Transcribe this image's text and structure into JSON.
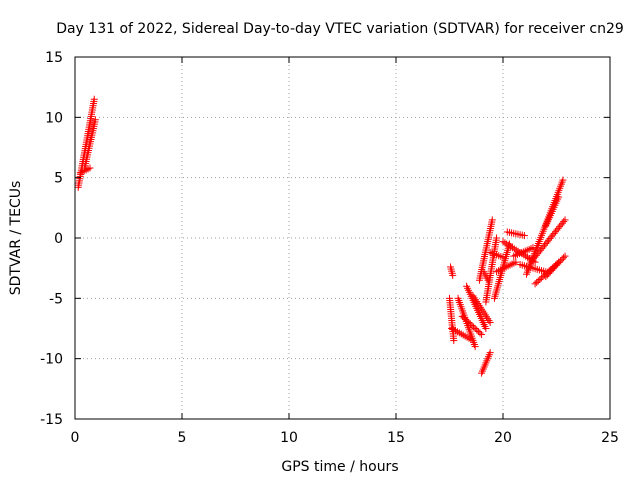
{
  "chart_data": {
    "type": "scatter",
    "title": "Day 131 of 2022, Sidereal Day-to-day VTEC variation (SDTVAR) for receiver cn29",
    "xlabel": "GPS time / hours",
    "ylabel": "SDTVAR / TECUs",
    "xlim": [
      0,
      25
    ],
    "ylim": [
      -15,
      15
    ],
    "xticks": [
      "0",
      "5",
      "10",
      "15",
      "20",
      "25"
    ],
    "yticks": [
      "15",
      "10",
      "5",
      "0",
      "-5",
      "-10",
      "-15"
    ],
    "grid": true,
    "marker": "plus",
    "color": "#ff0000",
    "series": [
      {
        "segments": [
          {
            "x": [
              0.15,
              0.9
            ],
            "y": [
              4.2,
              11.5
            ]
          },
          {
            "x": [
              0.25,
              0.7
            ],
            "y": [
              5.4,
              5.8
            ]
          },
          {
            "x": [
              0.45,
              0.95
            ],
            "y": [
              5.8,
              9.8
            ]
          },
          {
            "x": [
              17.55,
              17.65
            ],
            "y": [
              -2.4,
              -3.1
            ]
          },
          {
            "x": [
              17.5,
              17.7
            ],
            "y": [
              -5.0,
              -8.5
            ]
          },
          {
            "x": [
              17.6,
              18.5
            ],
            "y": [
              -7.5,
              -8.4
            ]
          },
          {
            "x": [
              17.9,
              18.7
            ],
            "y": [
              -5.0,
              -9.0
            ]
          },
          {
            "x": [
              18.1,
              19.0
            ],
            "y": [
              -6.5,
              -8.0
            ]
          },
          {
            "x": [
              18.3,
              19.2
            ],
            "y": [
              -4.0,
              -7.5
            ]
          },
          {
            "x": [
              18.6,
              19.4
            ],
            "y": [
              -4.8,
              -7.0
            ]
          },
          {
            "x": [
              18.9,
              19.5
            ],
            "y": [
              -3.5,
              1.5
            ]
          },
          {
            "x": [
              19.0,
              19.4
            ],
            "y": [
              -11.2,
              -9.5
            ]
          },
          {
            "x": [
              19.1,
              19.3
            ],
            "y": [
              -2.8,
              -3.5
            ]
          },
          {
            "x": [
              19.2,
              19.7
            ],
            "y": [
              -5.3,
              0.0
            ]
          },
          {
            "x": [
              19.4,
              20.0
            ],
            "y": [
              -1.2,
              -1.6
            ]
          },
          {
            "x": [
              19.6,
              20.3
            ],
            "y": [
              -5.0,
              -0.5
            ]
          },
          {
            "x": [
              19.7,
              20.6
            ],
            "y": [
              -2.8,
              -2.0
            ]
          },
          {
            "x": [
              20.0,
              21.5
            ],
            "y": [
              -0.3,
              -2.0
            ]
          },
          {
            "x": [
              20.2,
              21.0
            ],
            "y": [
              0.5,
              0.2
            ]
          },
          {
            "x": [
              20.5,
              21.4
            ],
            "y": [
              -1.5,
              -0.8
            ]
          },
          {
            "x": [
              20.8,
              22.0
            ],
            "y": [
              -2.2,
              -2.8
            ]
          },
          {
            "x": [
              21.1,
              22.8
            ],
            "y": [
              -3.0,
              4.8
            ]
          },
          {
            "x": [
              21.3,
              22.9
            ],
            "y": [
              -2.0,
              1.5
            ]
          },
          {
            "x": [
              21.5,
              22.6
            ],
            "y": [
              -3.8,
              -2.0
            ]
          },
          {
            "x": [
              22.0,
              22.9
            ],
            "y": [
              -3.2,
              -1.5
            ]
          },
          {
            "x": [
              22.0,
              22.6
            ],
            "y": [
              1.0,
              3.4
            ]
          }
        ]
      }
    ]
  }
}
